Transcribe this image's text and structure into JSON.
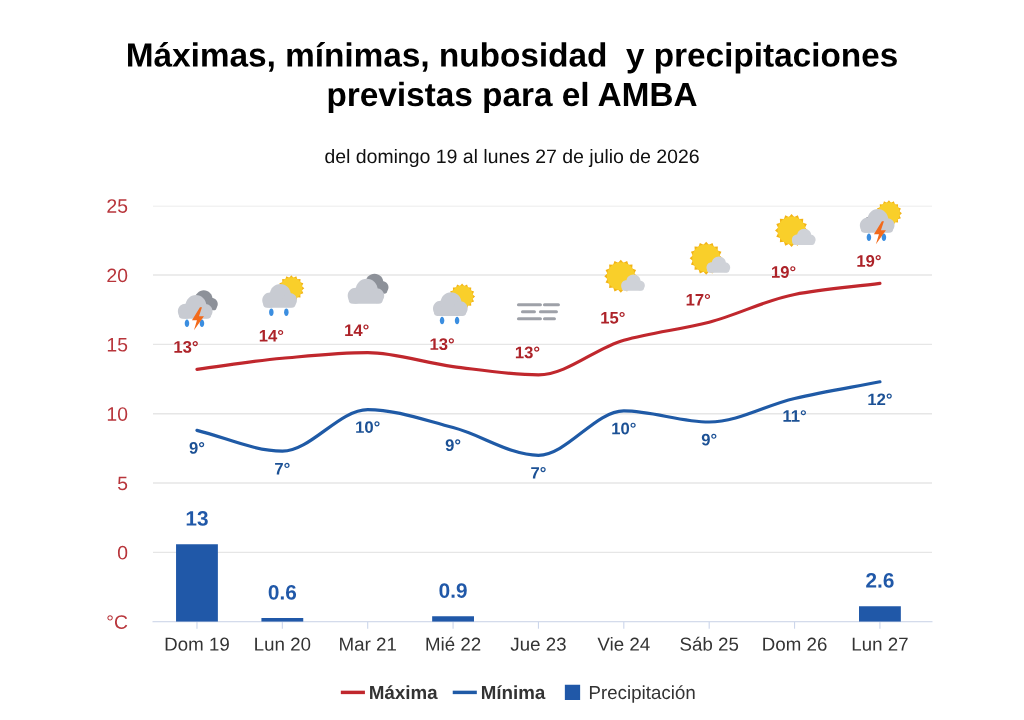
{
  "chart_data": {
    "type": "line",
    "title": "Máximas, mínimas, nubosidad  y precipitaciones\nprevistas para el AMBA",
    "subtitle": "del domingo 19 al lunes 27 de julio de 2026",
    "categories": [
      "Dom 19",
      "Lun 20",
      "Mar 21",
      "Mié 22",
      "Jue 23",
      "Vie 24",
      "Sáb 25",
      "Dom 26",
      "Lun 27"
    ],
    "series": [
      {
        "name": "Máxima",
        "color": "#c0272d",
        "values": [
          13.2,
          14.0,
          14.4,
          13.4,
          12.8,
          15.3,
          16.6,
          18.6,
          19.4
        ],
        "value_labels": [
          "13°",
          "14°",
          "14°",
          "13°",
          "13°",
          "15°",
          "17°",
          "19°",
          "19°"
        ]
      },
      {
        "name": "Mínima",
        "color": "#1f5aa6",
        "values": [
          8.8,
          7.3,
          10.3,
          9.0,
          7.0,
          10.2,
          9.4,
          11.1,
          12.3
        ],
        "value_labels": [
          "9°",
          "7°",
          "10°",
          "9°",
          "7°",
          "10°",
          "9°",
          "11°",
          "12°"
        ]
      },
      {
        "name": "Precipitación",
        "type": "bar",
        "axis": "y2",
        "color": "#2058a8",
        "values": [
          13,
          0.6,
          null,
          0.9,
          null,
          null,
          null,
          null,
          2.6
        ],
        "value_labels": [
          "13",
          "0.6",
          null,
          "0.9",
          null,
          null,
          null,
          null,
          "2.6"
        ]
      }
    ],
    "ylim": [
      -5,
      25
    ],
    "yticks": [
      {
        "value": -5,
        "label": "°C"
      },
      0,
      5,
      10,
      15,
      20,
      25
    ],
    "grid": "y",
    "legend": "bottom",
    "marker": "none",
    "line_style": "solid"
  }
}
